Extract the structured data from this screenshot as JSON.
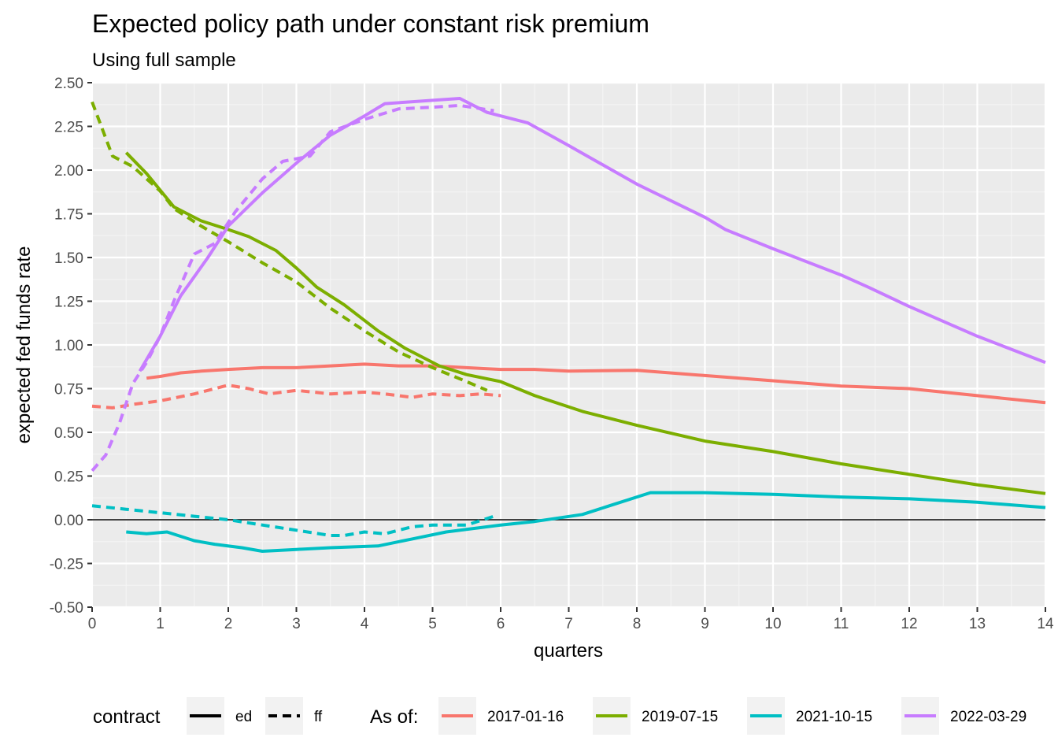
{
  "chart_data": {
    "type": "line",
    "title": "Expected policy path under constant risk premium",
    "subtitle": "Using full sample",
    "xlabel": "quarters",
    "ylabel": "expected fed funds rate",
    "xlim": [
      0,
      14
    ],
    "ylim": [
      -0.5,
      2.5
    ],
    "xticks": [
      "0",
      "1",
      "2",
      "3",
      "4",
      "5",
      "6",
      "7",
      "8",
      "9",
      "10",
      "11",
      "12",
      "13",
      "14"
    ],
    "yticks": [
      "-0.50",
      "-0.25",
      "0.00",
      "0.25",
      "0.50",
      "0.75",
      "1.00",
      "1.25",
      "1.50",
      "1.75",
      "2.00",
      "2.25",
      "2.50"
    ],
    "grid": true,
    "hline": 0,
    "legend_position": "bottom",
    "legend": {
      "linetype_title": "contract",
      "linetype_items": [
        {
          "label": "ed",
          "dash": "solid"
        },
        {
          "label": "ff",
          "dash": "dashed"
        }
      ],
      "color_title": "As of:",
      "color_items": [
        {
          "label": "2017-01-16",
          "color": "#F8766D"
        },
        {
          "label": "2019-07-15",
          "color": "#7CAE00"
        },
        {
          "label": "2021-10-15",
          "color": "#00BFC4"
        },
        {
          "label": "2022-03-29",
          "color": "#C77CFF"
        }
      ]
    },
    "series": [
      {
        "date": "2017-01-16",
        "contract": "ed",
        "color": "#F8766D",
        "dash": "solid",
        "points": [
          [
            0.8,
            0.81
          ],
          [
            1.0,
            0.82
          ],
          [
            1.3,
            0.84
          ],
          [
            1.6,
            0.85
          ],
          [
            2.0,
            0.86
          ],
          [
            2.5,
            0.87
          ],
          [
            3.0,
            0.87
          ],
          [
            3.5,
            0.88
          ],
          [
            4.0,
            0.89
          ],
          [
            4.5,
            0.88
          ],
          [
            5.0,
            0.88
          ],
          [
            5.5,
            0.87
          ],
          [
            6.0,
            0.86
          ],
          [
            6.5,
            0.86
          ],
          [
            7.0,
            0.85
          ],
          [
            8.0,
            0.855
          ],
          [
            9.0,
            0.825
          ],
          [
            10.0,
            0.795
          ],
          [
            11.0,
            0.765
          ],
          [
            12.0,
            0.75
          ],
          [
            13.0,
            0.71
          ],
          [
            14.0,
            0.67
          ]
        ]
      },
      {
        "date": "2017-01-16",
        "contract": "ff",
        "color": "#F8766D",
        "dash": "dashed",
        "points": [
          [
            0.0,
            0.65
          ],
          [
            0.3,
            0.64
          ],
          [
            0.6,
            0.66
          ],
          [
            1.0,
            0.68
          ],
          [
            1.5,
            0.72
          ],
          [
            2.0,
            0.77
          ],
          [
            2.3,
            0.75
          ],
          [
            2.6,
            0.72
          ],
          [
            3.0,
            0.74
          ],
          [
            3.5,
            0.72
          ],
          [
            4.0,
            0.73
          ],
          [
            4.3,
            0.72
          ],
          [
            4.7,
            0.7
          ],
          [
            5.0,
            0.72
          ],
          [
            5.4,
            0.71
          ],
          [
            5.7,
            0.72
          ],
          [
            6.0,
            0.71
          ]
        ]
      },
      {
        "date": "2019-07-15",
        "contract": "ed",
        "color": "#7CAE00",
        "dash": "solid",
        "points": [
          [
            0.5,
            2.1
          ],
          [
            0.8,
            1.98
          ],
          [
            1.2,
            1.79
          ],
          [
            1.6,
            1.71
          ],
          [
            2.0,
            1.66
          ],
          [
            2.3,
            1.62
          ],
          [
            2.7,
            1.54
          ],
          [
            3.0,
            1.44
          ],
          [
            3.3,
            1.33
          ],
          [
            3.7,
            1.23
          ],
          [
            4.2,
            1.08
          ],
          [
            4.6,
            0.98
          ],
          [
            5.1,
            0.88
          ],
          [
            5.5,
            0.83
          ],
          [
            6.0,
            0.79
          ],
          [
            6.5,
            0.71
          ],
          [
            7.2,
            0.62
          ],
          [
            8.0,
            0.54
          ],
          [
            9.0,
            0.45
          ],
          [
            10.0,
            0.39
          ],
          [
            11.0,
            0.32
          ],
          [
            12.0,
            0.26
          ],
          [
            13.0,
            0.2
          ],
          [
            14.0,
            0.15
          ]
        ]
      },
      {
        "date": "2019-07-15",
        "contract": "ff",
        "color": "#7CAE00",
        "dash": "dashed",
        "points": [
          [
            0.0,
            2.39
          ],
          [
            0.3,
            2.08
          ],
          [
            0.6,
            2.02
          ],
          [
            1.0,
            1.88
          ],
          [
            1.2,
            1.78
          ],
          [
            1.6,
            1.68
          ],
          [
            2.0,
            1.59
          ],
          [
            2.5,
            1.47
          ],
          [
            3.0,
            1.36
          ],
          [
            3.5,
            1.21
          ],
          [
            4.0,
            1.08
          ],
          [
            4.5,
            0.96
          ],
          [
            5.0,
            0.87
          ],
          [
            5.5,
            0.79
          ],
          [
            5.8,
            0.74
          ]
        ]
      },
      {
        "date": "2021-10-15",
        "contract": "ed",
        "color": "#00BFC4",
        "dash": "solid",
        "points": [
          [
            0.5,
            -0.07
          ],
          [
            0.8,
            -0.08
          ],
          [
            1.1,
            -0.07
          ],
          [
            1.5,
            -0.12
          ],
          [
            1.8,
            -0.14
          ],
          [
            2.2,
            -0.16
          ],
          [
            2.5,
            -0.18
          ],
          [
            3.0,
            -0.17
          ],
          [
            3.5,
            -0.16
          ],
          [
            4.2,
            -0.15
          ],
          [
            4.7,
            -0.11
          ],
          [
            5.2,
            -0.07
          ],
          [
            6.0,
            -0.03
          ],
          [
            6.5,
            -0.01
          ],
          [
            7.2,
            0.03
          ],
          [
            7.6,
            0.08
          ],
          [
            8.2,
            0.155
          ],
          [
            9.0,
            0.155
          ],
          [
            10.0,
            0.145
          ],
          [
            11.0,
            0.13
          ],
          [
            12.0,
            0.12
          ],
          [
            13.0,
            0.1
          ],
          [
            14.0,
            0.07
          ]
        ]
      },
      {
        "date": "2021-10-15",
        "contract": "ff",
        "color": "#00BFC4",
        "dash": "dashed",
        "points": [
          [
            0.0,
            0.08
          ],
          [
            0.5,
            0.06
          ],
          [
            1.0,
            0.04
          ],
          [
            1.5,
            0.02
          ],
          [
            2.0,
            0.0
          ],
          [
            2.5,
            -0.03
          ],
          [
            3.0,
            -0.06
          ],
          [
            3.5,
            -0.09
          ],
          [
            3.7,
            -0.09
          ],
          [
            4.0,
            -0.07
          ],
          [
            4.3,
            -0.08
          ],
          [
            4.7,
            -0.04
          ],
          [
            5.0,
            -0.03
          ],
          [
            5.5,
            -0.03
          ],
          [
            5.9,
            0.02
          ]
        ]
      },
      {
        "date": "2022-03-29",
        "contract": "ed",
        "color": "#C77CFF",
        "dash": "solid",
        "points": [
          [
            0.7,
            0.85
          ],
          [
            1.0,
            1.05
          ],
          [
            1.3,
            1.28
          ],
          [
            1.7,
            1.5
          ],
          [
            2.0,
            1.68
          ],
          [
            2.5,
            1.87
          ],
          [
            3.0,
            2.04
          ],
          [
            3.5,
            2.2
          ],
          [
            4.0,
            2.31
          ],
          [
            4.3,
            2.38
          ],
          [
            5.4,
            2.41
          ],
          [
            5.8,
            2.33
          ],
          [
            6.4,
            2.27
          ],
          [
            7.0,
            2.14
          ],
          [
            8.0,
            1.92
          ],
          [
            9.0,
            1.73
          ],
          [
            9.3,
            1.66
          ],
          [
            10.0,
            1.55
          ],
          [
            11.0,
            1.4
          ],
          [
            11.4,
            1.33
          ],
          [
            12.0,
            1.22
          ],
          [
            13.0,
            1.05
          ],
          [
            13.4,
            0.99
          ],
          [
            14.0,
            0.9
          ]
        ]
      },
      {
        "date": "2022-03-29",
        "contract": "ff",
        "color": "#C77CFF",
        "dash": "dashed",
        "points": [
          [
            0.0,
            0.28
          ],
          [
            0.2,
            0.37
          ],
          [
            0.4,
            0.55
          ],
          [
            0.6,
            0.78
          ],
          [
            0.8,
            0.9
          ],
          [
            1.0,
            1.05
          ],
          [
            1.2,
            1.25
          ],
          [
            1.5,
            1.52
          ],
          [
            1.8,
            1.58
          ],
          [
            2.1,
            1.76
          ],
          [
            2.5,
            1.95
          ],
          [
            2.8,
            2.05
          ],
          [
            3.2,
            2.08
          ],
          [
            3.5,
            2.22
          ],
          [
            4.0,
            2.29
          ],
          [
            4.5,
            2.35
          ],
          [
            5.0,
            2.36
          ],
          [
            5.4,
            2.37
          ],
          [
            5.9,
            2.34
          ]
        ]
      }
    ]
  }
}
